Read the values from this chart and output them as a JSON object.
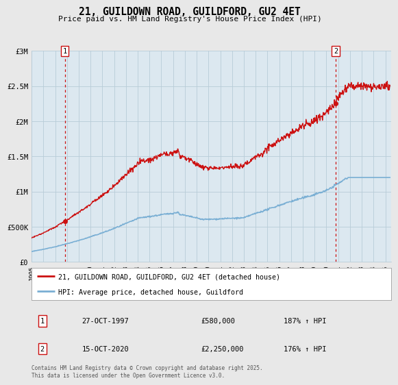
{
  "title": "21, GUILDOWN ROAD, GUILDFORD, GU2 4ET",
  "subtitle": "Price paid vs. HM Land Registry's House Price Index (HPI)",
  "background_color": "#e8e8e8",
  "plot_bg_color": "#dce8f0",
  "x_start": 1995.0,
  "x_end": 2025.5,
  "y_min": 0,
  "y_max": 3000000,
  "yticks": [
    0,
    500000,
    1000000,
    1500000,
    2000000,
    2500000,
    3000000
  ],
  "ytick_labels": [
    "£0",
    "£500K",
    "£1M",
    "£1.5M",
    "£2M",
    "£2.5M",
    "£3M"
  ],
  "xtick_years": [
    1995,
    1996,
    1997,
    1998,
    1999,
    2000,
    2001,
    2002,
    2003,
    2004,
    2005,
    2006,
    2007,
    2008,
    2009,
    2010,
    2011,
    2012,
    2013,
    2014,
    2015,
    2016,
    2017,
    2018,
    2019,
    2020,
    2021,
    2022,
    2023,
    2024,
    2025
  ],
  "legend_line1": "21, GUILDOWN ROAD, GUILDFORD, GU2 4ET (detached house)",
  "legend_line2": "HPI: Average price, detached house, Guildford",
  "ann1_num": "1",
  "ann1_x": 1997.82,
  "ann1_y": 580000,
  "ann1_date": "27-OCT-1997",
  "ann1_price": "£580,000",
  "ann1_pct": "187% ↑ HPI",
  "ann2_num": "2",
  "ann2_x": 2020.79,
  "ann2_y": 2250000,
  "ann2_date": "15-OCT-2020",
  "ann2_price": "£2,250,000",
  "ann2_pct": "176% ↑ HPI",
  "footer": "Contains HM Land Registry data © Crown copyright and database right 2025.\nThis data is licensed under the Open Government Licence v3.0.",
  "red_line_color": "#cc1111",
  "blue_line_color": "#7aafd4",
  "dot_color": "#cc1111",
  "grid_color": "#b8ccd8",
  "spine_color": "#b8ccd8"
}
